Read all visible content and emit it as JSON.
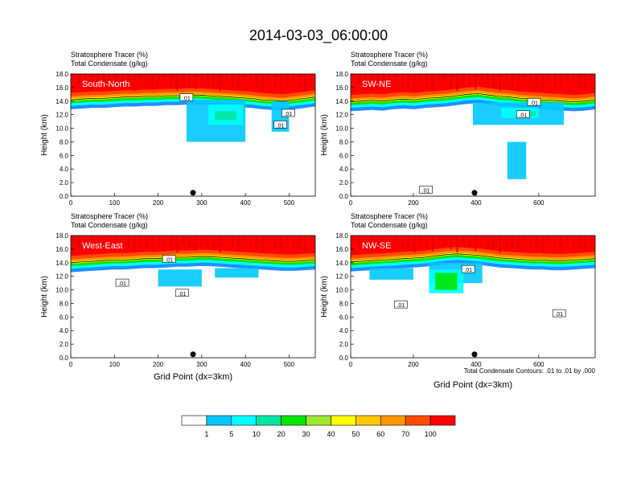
{
  "chart_data": {
    "type": "heatmap",
    "title": "2014-03-03_06:00:00",
    "title_lines": [
      "Stratosphere Tracer   (%)",
      "Total Condensate   (g/kg)"
    ],
    "ylabel": "Height (km)",
    "xlabel": "Grid Point (dx=3km)",
    "y_ticks": [
      "0.0",
      "2.0",
      "4.0",
      "6.0",
      "8.0",
      "10.0",
      "12.0",
      "14.0",
      "16.0",
      "18.0"
    ],
    "ylim": [
      0,
      18
    ],
    "contour_note": "Total Condensate Contours: .01 to .01 by .000",
    "contour_label": ".01",
    "legend": {
      "labels": [
        "1",
        "5",
        "10",
        "20",
        "30",
        "40",
        "50",
        "60",
        "70",
        "100"
      ],
      "colors": [
        "#ffffff",
        "#1e90ff",
        "#00c8ff",
        "#00ffff",
        "#00e6a0",
        "#00e600",
        "#a0e632",
        "#ffff00",
        "#ffc800",
        "#ff9600",
        "#ff4b00",
        "#ff0000"
      ]
    },
    "panels": [
      {
        "name": "South-North",
        "xlim": [
          0,
          560
        ],
        "x_ticks": [
          "0",
          "100",
          "200",
          "300",
          "400",
          "500"
        ],
        "x_tick_values": [
          0,
          100,
          200,
          300,
          400,
          500
        ],
        "marker_x": 280,
        "tropopause_km": [
          14.6,
          14.7,
          14.8,
          14.8,
          14.9,
          15.0,
          15.0,
          15.1,
          15.1,
          15.2,
          15.2,
          15.3,
          15.3,
          15.2,
          15.1,
          15.0,
          14.9,
          14.8,
          14.6,
          14.5,
          14.4,
          14.6,
          14.8,
          15.0
        ],
        "anvil": [
          {
            "x0": 265,
            "x1": 400,
            "top": 14.2,
            "bottom": 8.0,
            "level": 2
          },
          {
            "x0": 315,
            "x1": 395,
            "top": 13.5,
            "bottom": 10.5,
            "level": 3
          },
          {
            "x0": 330,
            "x1": 380,
            "top": 12.5,
            "bottom": 11.2,
            "level": 4
          },
          {
            "x0": 460,
            "x1": 500,
            "top": 14.0,
            "bottom": 9.5,
            "level": 2
          }
        ],
        "contour_tags": [
          {
            "x": 265,
            "y": 14.5
          },
          {
            "x": 498,
            "y": 12.2
          },
          {
            "x": 480,
            "y": 10.5
          }
        ]
      },
      {
        "name": "SW-NE",
        "xlim": [
          0,
          780
        ],
        "x_ticks": [
          "0",
          "200",
          "400",
          "600"
        ],
        "x_tick_values": [
          0,
          200,
          400,
          600
        ],
        "marker_x": 395,
        "tropopause_km": [
          14.3,
          14.4,
          14.5,
          14.4,
          14.6,
          14.7,
          14.6,
          14.8,
          14.9,
          15.0,
          15.2,
          15.4,
          15.5,
          15.3,
          15.1,
          15.0,
          14.8,
          14.7,
          14.6,
          14.5,
          14.4,
          14.3,
          14.4,
          14.6
        ],
        "anvil": [
          {
            "x0": 390,
            "x1": 680,
            "top": 13.8,
            "bottom": 10.5,
            "level": 2
          },
          {
            "x0": 480,
            "x1": 600,
            "top": 13.0,
            "bottom": 11.5,
            "level": 3
          },
          {
            "x0": 540,
            "x1": 590,
            "top": 12.5,
            "bottom": 11.8,
            "level": 4
          },
          {
            "x0": 500,
            "x1": 560,
            "top": 8.0,
            "bottom": 2.5,
            "level": 2
          }
        ],
        "contour_tags": [
          {
            "x": 585,
            "y": 13.8
          },
          {
            "x": 240,
            "y": 0.9
          },
          {
            "x": 550,
            "y": 12.0
          }
        ]
      },
      {
        "name": "West-East",
        "xlim": [
          0,
          560
        ],
        "x_ticks": [
          "0",
          "100",
          "200",
          "300",
          "400",
          "500"
        ],
        "x_tick_values": [
          0,
          100,
          200,
          300,
          400,
          500
        ],
        "marker_x": 280,
        "tropopause_km": [
          14.4,
          14.5,
          14.6,
          14.7,
          14.8,
          14.8,
          14.9,
          15.0,
          15.0,
          15.1,
          15.2,
          15.2,
          15.3,
          15.3,
          15.2,
          15.1,
          15.0,
          14.9,
          14.8,
          14.7,
          14.6,
          14.6,
          14.7,
          14.8
        ],
        "anvil": [
          {
            "x0": 200,
            "x1": 300,
            "top": 13.0,
            "bottom": 10.5,
            "level": 2
          },
          {
            "x0": 330,
            "x1": 430,
            "top": 13.2,
            "bottom": 11.8,
            "level": 2
          }
        ],
        "contour_tags": [
          {
            "x": 225,
            "y": 14.5
          },
          {
            "x": 118,
            "y": 11.0
          },
          {
            "x": 255,
            "y": 9.5
          }
        ]
      },
      {
        "name": "NW-SE",
        "xlim": [
          0,
          780
        ],
        "x_ticks": [
          "0",
          "200",
          "400",
          "600"
        ],
        "x_tick_values": [
          0,
          200,
          400,
          600
        ],
        "marker_x": 395,
        "tropopause_km": [
          14.5,
          14.6,
          14.7,
          14.8,
          14.9,
          15.0,
          15.1,
          15.2,
          15.4,
          15.6,
          15.7,
          15.6,
          15.5,
          15.3,
          15.1,
          15.0,
          14.9,
          14.8,
          14.8,
          14.7,
          14.7,
          14.8,
          14.9,
          15.0
        ],
        "anvil": [
          {
            "x0": 250,
            "x1": 420,
            "top": 14.0,
            "bottom": 11.0,
            "level": 2
          },
          {
            "x0": 250,
            "x1": 360,
            "top": 13.0,
            "bottom": 9.5,
            "level": 3
          },
          {
            "x0": 270,
            "x1": 340,
            "top": 12.5,
            "bottom": 10.0,
            "level": 5
          },
          {
            "x0": 60,
            "x1": 200,
            "top": 13.2,
            "bottom": 11.5,
            "level": 2
          }
        ],
        "contour_tags": [
          {
            "x": 375,
            "y": 13.0
          },
          {
            "x": 160,
            "y": 7.8
          },
          {
            "x": 665,
            "y": 6.5
          }
        ]
      }
    ]
  }
}
